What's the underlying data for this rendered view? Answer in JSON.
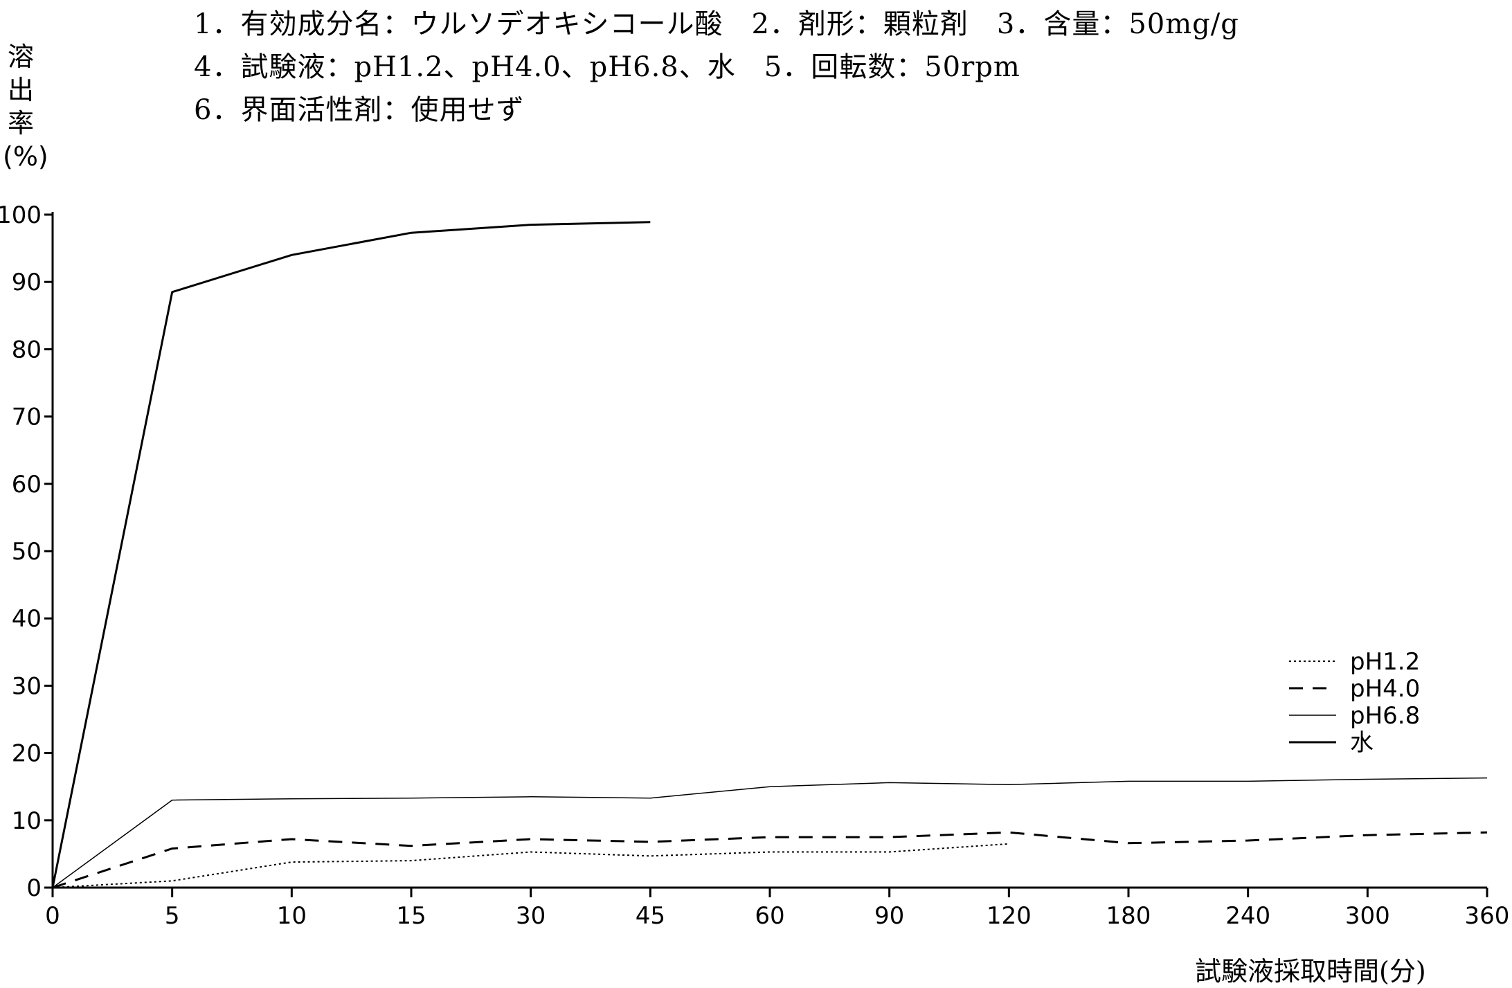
{
  "conditions": {
    "line1": "1．有効成分名：ウルソデオキシコール酸　2．剤形：顆粒剤　3．含量：50mg/g",
    "line2": "4．試験液：pH1.2、pH4.0、pH6.8、水　5．回転数：50rpm",
    "line3": "6．界面活性剤：使用せず"
  },
  "chart_data": {
    "type": "line",
    "ylabel": [
      "溶",
      "出",
      "率",
      "(%)"
    ],
    "xlabel": "試験液採取時間(分)",
    "x": [
      "0",
      "5",
      "10",
      "15",
      "30",
      "45",
      "60",
      "90",
      "120",
      "180",
      "240",
      "300",
      "360"
    ],
    "yticks": [
      "0",
      "10",
      "20",
      "30",
      "40",
      "50",
      "60",
      "70",
      "80",
      "90",
      "100"
    ],
    "ylim": [
      0,
      100
    ],
    "grid": false,
    "legend_position": "lower-right",
    "series": [
      {
        "name": "pH1.2",
        "style": "dotted",
        "color": "#000000",
        "values": [
          0,
          1,
          3.8,
          4,
          5.3,
          4.7,
          5.3,
          5.3,
          6.5,
          null,
          null,
          null,
          null
        ]
      },
      {
        "name": "pH4.0",
        "style": "dashed",
        "color": "#000000",
        "values": [
          0,
          5.8,
          7.2,
          6.2,
          7.2,
          6.8,
          7.5,
          7.5,
          8.2,
          6.6,
          7,
          7.8,
          8.2
        ]
      },
      {
        "name": "pH6.8",
        "style": "thin",
        "color": "#000000",
        "values": [
          0,
          13,
          13.2,
          13.3,
          13.5,
          13.3,
          15,
          15.6,
          15.3,
          15.8,
          15.8,
          16.1,
          16.3
        ]
      },
      {
        "name": "水",
        "style": "solid",
        "color": "#000000",
        "values": [
          0,
          88.5,
          94,
          97.3,
          98.5,
          98.9,
          null,
          null,
          null,
          null,
          null,
          null,
          null
        ]
      }
    ]
  }
}
